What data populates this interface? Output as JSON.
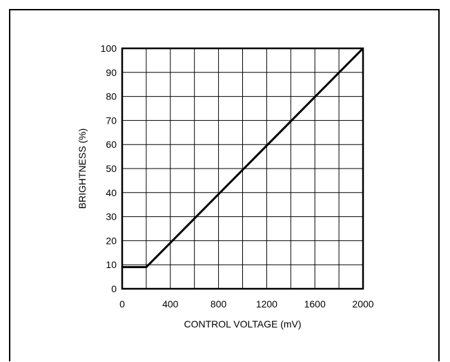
{
  "chart_data": {
    "type": "line",
    "title": "",
    "xlabel": "CONTROL VOLTAGE (mV)",
    "ylabel": "BRIGHTNESS (%)",
    "xlim": [
      0,
      2000
    ],
    "ylim": [
      0,
      100
    ],
    "x_ticks": [
      0,
      400,
      800,
      1200,
      1600,
      2000
    ],
    "y_ticks": [
      0,
      10,
      20,
      30,
      40,
      50,
      60,
      70,
      80,
      90,
      100
    ],
    "y_tick_labels": [
      "0",
      "10",
      "20",
      "30",
      "40",
      "50",
      "60",
      "70",
      "80",
      "90",
      "100"
    ],
    "x_gridlines": [
      200,
      400,
      600,
      800,
      1000,
      1200,
      1400,
      1600,
      1800
    ],
    "grid": true,
    "series": [
      {
        "x": [
          0,
          200,
          2000
        ],
        "y": [
          9,
          9,
          100
        ]
      }
    ]
  }
}
